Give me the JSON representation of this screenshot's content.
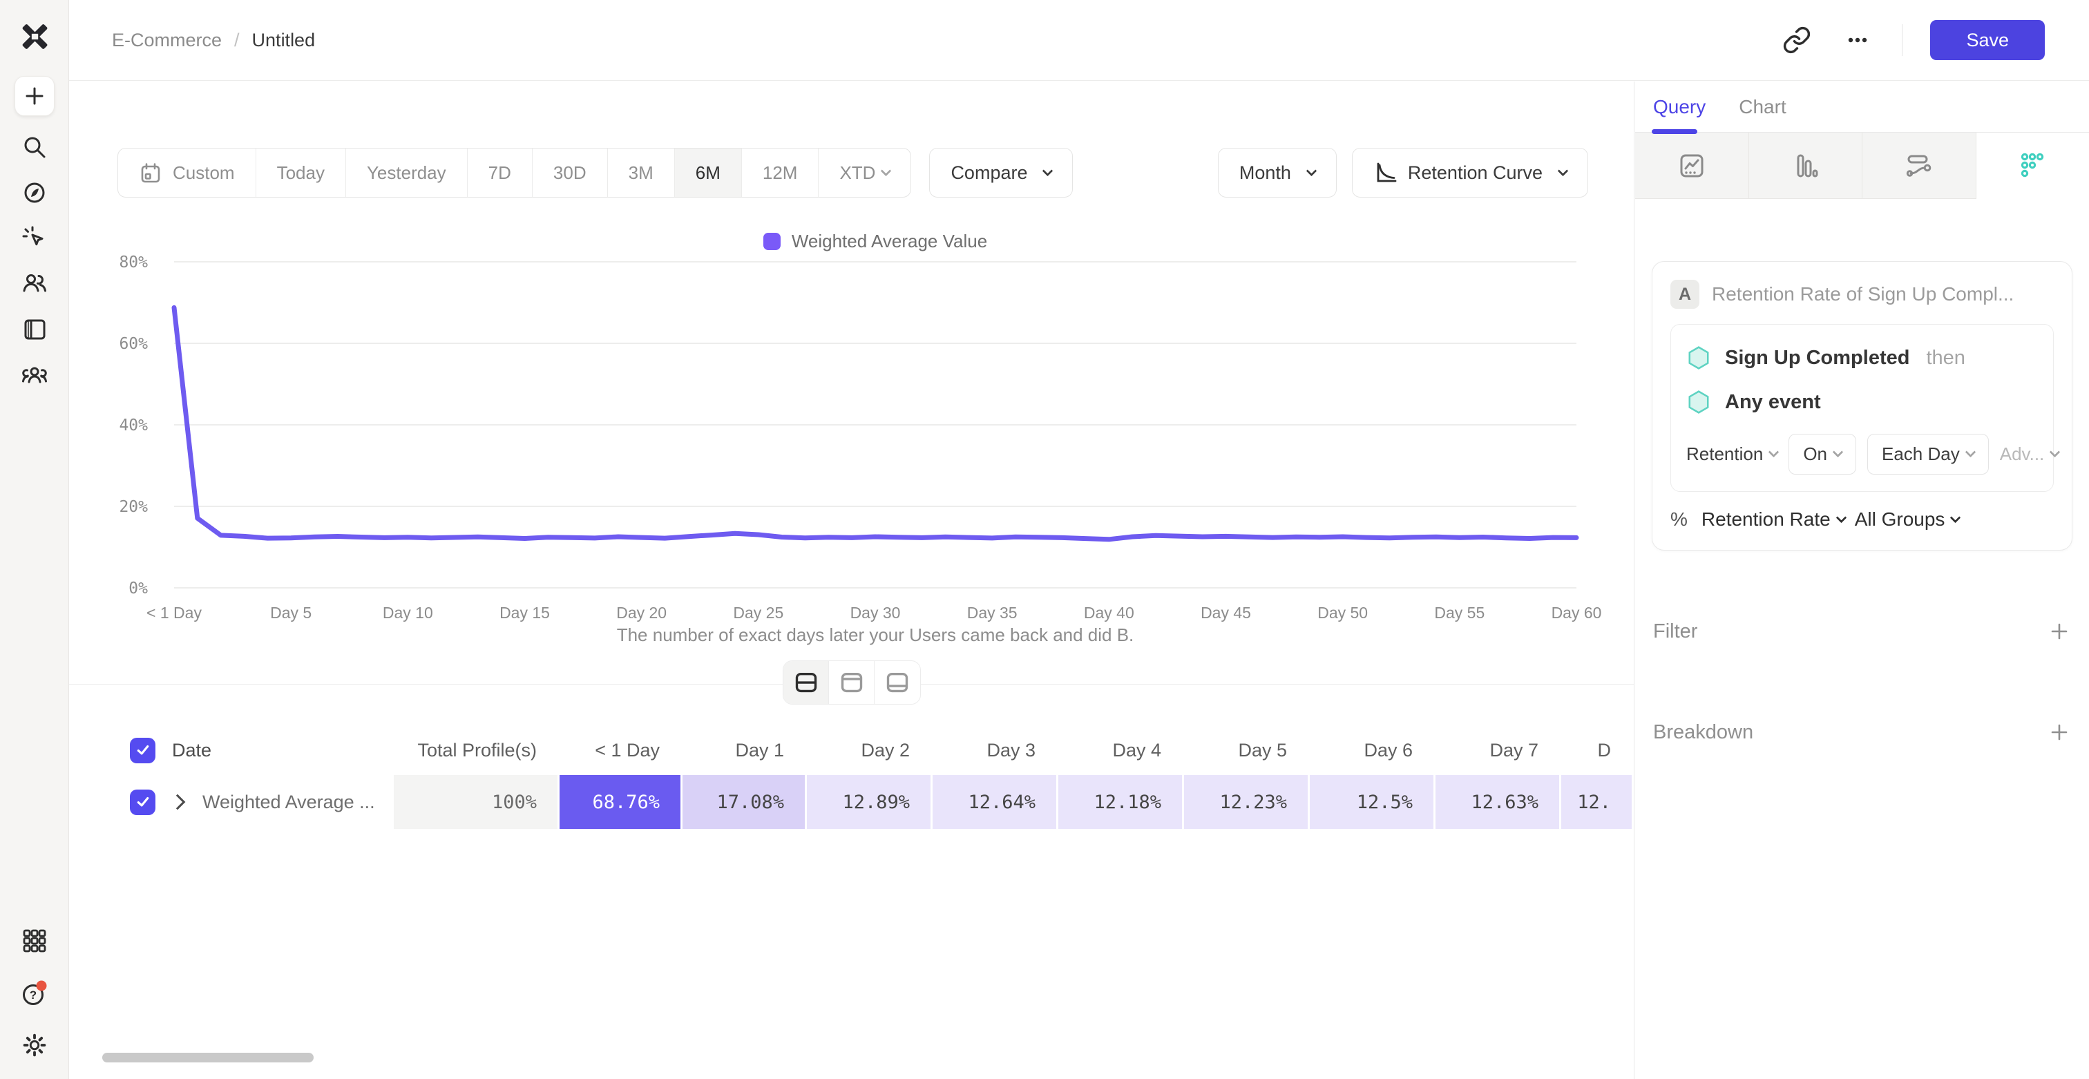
{
  "header": {
    "breadcrumb_project": "E-Commerce",
    "breadcrumb_sep": "/",
    "breadcrumb_page": "Untitled",
    "save_label": "Save"
  },
  "sidebar": {
    "logo": "mixpanel-logo",
    "top_items": [
      "add",
      "search",
      "explore",
      "events-activity",
      "users",
      "boards",
      "cohorts"
    ],
    "bottom_items": [
      "apps-grid",
      "help",
      "settings"
    ],
    "help_has_notification": true
  },
  "toolbar": {
    "date_buttons": [
      {
        "label": "Custom",
        "icon": "calendar",
        "selected": false
      },
      {
        "label": "Today",
        "selected": false
      },
      {
        "label": "Yesterday",
        "selected": false
      },
      {
        "label": "7D",
        "selected": false
      },
      {
        "label": "30D",
        "selected": false
      },
      {
        "label": "3M",
        "selected": false
      },
      {
        "label": "6M",
        "selected": true
      },
      {
        "label": "12M",
        "selected": false
      },
      {
        "label": "XTD",
        "selected": false,
        "chevron": true
      }
    ],
    "compare_label": "Compare",
    "granularity_label": "Month",
    "chart_type_label": "Retention Curve"
  },
  "legend": {
    "label": "Weighted Average Value",
    "color": "#7a5af8"
  },
  "chart_data": {
    "type": "line",
    "title": "",
    "xlabel": "The number of exact days later your Users came back and did B.",
    "ylabel": "",
    "ylim": [
      0,
      80
    ],
    "y_ticks": [
      0,
      20,
      40,
      60,
      80
    ],
    "y_tick_labels": [
      "0%",
      "20%",
      "40%",
      "60%",
      "80%"
    ],
    "x_tick_labels": [
      "< 1 Day",
      "Day 5",
      "Day 10",
      "Day 15",
      "Day 20",
      "Day 25",
      "Day 30",
      "Day 35",
      "Day 40",
      "Day 45",
      "Day 50",
      "Day 55",
      "Day 60"
    ],
    "x_unit": "days_since_first_event",
    "grid": "horizontal",
    "legend_position": "top-center",
    "series": [
      {
        "name": "Weighted Average Value",
        "color": "#6e5bf0",
        "values": [
          68.76,
          17.08,
          12.89,
          12.64,
          12.18,
          12.23,
          12.5,
          12.63,
          12.45,
          12.3,
          12.42,
          12.25,
          12.38,
          12.5,
          12.3,
          12.12,
          12.4,
          12.34,
          12.22,
          12.55,
          12.35,
          12.18,
          12.6,
          12.95,
          13.35,
          13.05,
          12.45,
          12.25,
          12.4,
          12.3,
          12.55,
          12.42,
          12.3,
          12.5,
          12.36,
          12.22,
          12.5,
          12.4,
          12.3,
          12.1,
          11.9,
          12.55,
          12.85,
          12.7,
          12.55,
          12.65,
          12.5,
          12.35,
          12.5,
          12.42,
          12.55,
          12.35,
          12.25,
          12.4,
          12.5,
          12.32,
          12.45,
          12.25,
          12.12,
          12.35,
          12.3
        ]
      }
    ]
  },
  "view_toggle": {
    "options": [
      "split-view",
      "chart-only",
      "table-only"
    ],
    "selected": "split-view"
  },
  "table": {
    "columns": [
      "Date",
      "Total Profile(s)",
      "< 1 Day",
      "Day 1",
      "Day 2",
      "Day 3",
      "Day 4",
      "Day 5",
      "Day 6",
      "Day 7",
      "D"
    ],
    "rows": [
      {
        "checked": true,
        "label": "Weighted Average ...",
        "values": [
          "100%",
          "68.76%",
          "17.08%",
          "12.89%",
          "12.64%",
          "12.18%",
          "12.23%",
          "12.5%",
          "12.63%",
          "12."
        ]
      }
    ]
  },
  "query_panel": {
    "tabs": [
      "Query",
      "Chart"
    ],
    "active_tab": "Query",
    "chart_type_icons": [
      "insights-line",
      "bar-chart",
      "flows",
      "retention-dots"
    ],
    "selected_chart_type": "retention-dots",
    "badge": "A",
    "report_label": "Retention Rate of Sign Up Compl...",
    "events": [
      {
        "name": "Sign Up Completed",
        "suffix": "then"
      },
      {
        "name": "Any event",
        "suffix": ""
      }
    ],
    "controls": {
      "retention_label": "Retention",
      "on_label": "On",
      "each_label": "Each Day",
      "adv_label": "Adv..."
    },
    "measure": {
      "symbol": "%",
      "metric": "Retention Rate",
      "groups": "All Groups"
    },
    "sections": [
      {
        "label": "Filter"
      },
      {
        "label": "Breakdown"
      }
    ]
  },
  "colors": {
    "accent_purple": "#4c43e0",
    "line_purple": "#6e5bf0",
    "cell_purple": "#6a5bf0",
    "cell_light_purple": "#e9e4fb",
    "teal": "#45cfbe",
    "notification_red": "#e8543f"
  }
}
